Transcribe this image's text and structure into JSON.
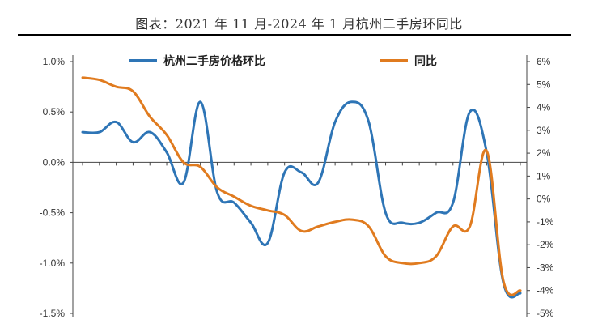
{
  "title": "图表：2021 年 11 月-2024 年 1 月杭州二手房环同比",
  "chart_data": {
    "type": "line",
    "title": "图表：2021 年 11 月-2024 年 1 月杭州二手房环同比",
    "legend_position": "top",
    "grid": false,
    "y_left": {
      "range": [
        -1.5,
        1.0
      ],
      "ticks": [
        "1.0%",
        "0.5%",
        "0.0%",
        "-0.5%",
        "-1.0%",
        "-1.5%"
      ]
    },
    "y_right": {
      "range": [
        -5,
        6
      ],
      "ticks": [
        "6%",
        "5%",
        "4%",
        "3%",
        "2%",
        "1%",
        "0%",
        "-1%",
        "-2%",
        "-3%",
        "-4%",
        "-5%"
      ]
    },
    "series": [
      {
        "name": "杭州二手房价格环比",
        "axis": "left",
        "color": "#2E75B6",
        "x": [
          0,
          1,
          2,
          3,
          4,
          5,
          6,
          7,
          8,
          9,
          10,
          11,
          12,
          13,
          14,
          15,
          16,
          17,
          18,
          19,
          20,
          21,
          22,
          23,
          24,
          25,
          26
        ],
        "values": [
          0.3,
          0.3,
          0.4,
          0.2,
          0.3,
          0.1,
          -0.2,
          0.6,
          -0.3,
          -0.4,
          -0.6,
          -0.8,
          -0.1,
          -0.1,
          -0.2,
          0.4,
          0.6,
          0.4,
          -0.5,
          -0.6,
          -0.6,
          -0.5,
          -0.4,
          0.5,
          0.1,
          -1.2,
          -1.3
        ]
      },
      {
        "name": "同比",
        "axis": "right",
        "color": "#E07B1F",
        "x": [
          0,
          1,
          2,
          3,
          4,
          5,
          6,
          7,
          8,
          9,
          10,
          11,
          12,
          13,
          14,
          15,
          16,
          17,
          18,
          19,
          20,
          21,
          22,
          23,
          24,
          25,
          26
        ],
        "values": [
          5.3,
          5.2,
          4.9,
          4.7,
          3.6,
          2.8,
          1.6,
          1.4,
          0.5,
          0.1,
          -0.3,
          -0.5,
          -0.7,
          -1.4,
          -1.2,
          -1.0,
          -0.9,
          -1.2,
          -2.5,
          -2.8,
          -2.8,
          -2.5,
          -1.2,
          -1.2,
          2.1,
          -3.6,
          -4.0
        ]
      }
    ]
  }
}
